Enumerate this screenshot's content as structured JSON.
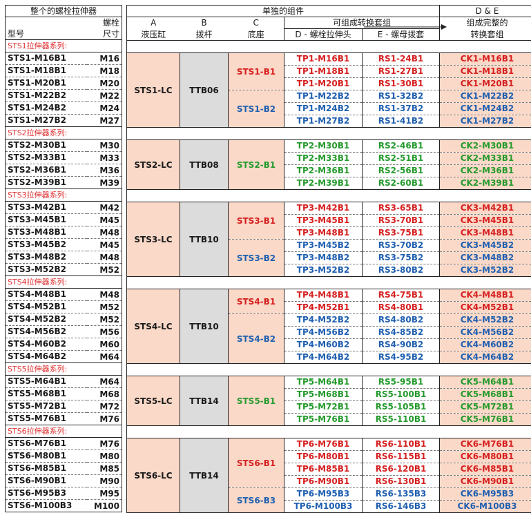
{
  "left_header": {
    "title": "整个的螺栓拉伸器",
    "bolt": "螺栓",
    "size": "尺寸",
    "model": "型号"
  },
  "right_header": {
    "separate": "单独的组件",
    "combine": "可组成转换套组",
    "de_title": "D & E",
    "de_1": "组成完整的",
    "de_2": "转换套组",
    "a_letter": "A",
    "a_name": "液压缸",
    "b_letter": "B",
    "b_name": "拨杆",
    "c_letter": "C",
    "c_name": "底座",
    "d_name": "D - 螺栓拉伸头",
    "e_name": "E - 螺母拨套"
  },
  "series": [
    {
      "label": "STS1拉伸器系列:",
      "cyl": "STS1-LC",
      "lever": "TTB06",
      "bases": [
        {
          "name": "STS1-B1",
          "color": "red",
          "rows": [
            {
              "model": "STS1-M16B1",
              "size": "M16",
              "head": "TP1-M16B1",
              "socket": "RS1-24B1",
              "kit": "CK1-M16B1"
            },
            {
              "model": "STS1-M18B1",
              "size": "M18",
              "head": "TP1-M18B1",
              "socket": "RS1-27B1",
              "kit": "CK1-M18B1"
            },
            {
              "model": "STS1-M20B1",
              "size": "M20",
              "head": "TP1-M20B1",
              "socket": "RS1-30B1",
              "kit": "CK1-M20B1"
            }
          ]
        },
        {
          "name": "STS1-B2",
          "color": "blue",
          "rows": [
            {
              "model": "STS1-M22B2",
              "size": "M22",
              "head": "TP1-M22B2",
              "socket": "RS1-32B2",
              "kit": "CK1-M22B2"
            },
            {
              "model": "STS1-M24B2",
              "size": "M24",
              "head": "TP1-M24B2",
              "socket": "RS1-37B2",
              "kit": "CK1-M24B2"
            },
            {
              "model": "STS1-M27B2",
              "size": "M27",
              "head": "TP1-M27B2",
              "socket": "RS1-41B2",
              "kit": "CK1-M27B2"
            }
          ]
        }
      ]
    },
    {
      "label": "STS2拉伸器系列:",
      "cyl": "STS2-LC",
      "lever": "TTB08",
      "bases": [
        {
          "name": "STS2-B1",
          "color": "green",
          "rows": [
            {
              "model": "STS2-M30B1",
              "size": "M30",
              "head": "TP2-M30B1",
              "socket": "RS2-46B1",
              "kit": "CK2-M30B1"
            },
            {
              "model": "STS2-M33B1",
              "size": "M33",
              "head": "TP2-M33B1",
              "socket": "RS2-51B1",
              "kit": "CK2-M33B1"
            },
            {
              "model": "STS2-M36B1",
              "size": "M36",
              "head": "TP2-M36B1",
              "socket": "RS2-56B1",
              "kit": "CK2-M36B1"
            },
            {
              "model": "STS2-M39B1",
              "size": "M39",
              "head": "TP2-M39B1",
              "socket": "RS2-60B1",
              "kit": "CK2-M39B1"
            }
          ]
        }
      ]
    },
    {
      "label": "STS3拉伸器系列:",
      "cyl": "STS3-LC",
      "lever": "TTB10",
      "bases": [
        {
          "name": "STS3-B1",
          "color": "red",
          "rows": [
            {
              "model": "STS3-M42B1",
              "size": "M42",
              "head": "TP3-M42B1",
              "socket": "RS3-65B1",
              "kit": "CK3-M42B1"
            },
            {
              "model": "STS3-M45B1",
              "size": "M45",
              "head": "TP3-M45B1",
              "socket": "RS3-70B1",
              "kit": "CK3-M45B1"
            },
            {
              "model": "STS3-M48B1",
              "size": "M48",
              "head": "TP3-M48B1",
              "socket": "RS3-75B1",
              "kit": "CK3-M48B1"
            }
          ]
        },
        {
          "name": "STS3-B2",
          "color": "blue",
          "rows": [
            {
              "model": "STS3-M45B2",
              "size": "M45",
              "head": "TP3-M45B2",
              "socket": "RS3-70B2",
              "kit": "CK3-M45B2"
            },
            {
              "model": "STS3-M48B2",
              "size": "M48",
              "head": "TP3-M48B2",
              "socket": "RS3-75B2",
              "kit": "CK3-M48B2"
            },
            {
              "model": "STS3-M52B2",
              "size": "M52",
              "head": "TP3-M52B2",
              "socket": "RS3-80B2",
              "kit": "CK3-M52B2"
            }
          ]
        }
      ]
    },
    {
      "label": "STS4拉伸器系列:",
      "cyl": "STS4-LC",
      "lever": "TTB10",
      "bases": [
        {
          "name": "STS4-B1",
          "color": "red",
          "rows": [
            {
              "model": "STS4-M48B1",
              "size": "M48",
              "head": "TP4-M48B1",
              "socket": "RS4-75B1",
              "kit": "CK4-M48B1"
            },
            {
              "model": "STS4-M52B1",
              "size": "M52",
              "head": "TP4-M52B1",
              "socket": "RS4-80B1",
              "kit": "CK4-M52B1"
            }
          ]
        },
        {
          "name": "STS4-B2",
          "color": "blue",
          "rows": [
            {
              "model": "STS4-M52B2",
              "size": "M52",
              "head": "TP4-M52B2",
              "socket": "RS4-80B2",
              "kit": "CK4-M52B2"
            },
            {
              "model": "STS4-M56B2",
              "size": "M56",
              "head": "TP4-M56B2",
              "socket": "RS4-85B2",
              "kit": "CK4-M56B2"
            },
            {
              "model": "STS4-M60B2",
              "size": "M60",
              "head": "TP4-M60B2",
              "socket": "RS4-90B2",
              "kit": "CK4-M60B2"
            },
            {
              "model": "STS4-M64B2",
              "size": "M64",
              "head": "TP4-M64B2",
              "socket": "RS4-95B2",
              "kit": "CK4-M64B2"
            }
          ]
        }
      ]
    },
    {
      "label": "STS5拉伸器系列:",
      "cyl": "STS5-LC",
      "lever": "TTB14",
      "bases": [
        {
          "name": "STS5-B1",
          "color": "green",
          "rows": [
            {
              "model": "STS5-M64B1",
              "size": "M64",
              "head": "TP5-M64B1",
              "socket": "RS5-95B1",
              "kit": "CK5-M64B1"
            },
            {
              "model": "STS5-M68B1",
              "size": "M68",
              "head": "TP5-M68B1",
              "socket": "RS5-100B1",
              "kit": "CK5-M68B1"
            },
            {
              "model": "STS5-M72B1",
              "size": "M72",
              "head": "TP5-M72B1",
              "socket": "RS5-105B1",
              "kit": "CK5-M72B1"
            },
            {
              "model": "STS5-M76B1",
              "size": "M76",
              "head": "TP5-M76B1",
              "socket": "RS5-110B1",
              "kit": "CK5-M76B1"
            }
          ]
        }
      ]
    },
    {
      "label": "STS6拉伸器系列:",
      "cyl": "STS6-LC",
      "lever": "TTB14",
      "bases": [
        {
          "name": "STS6-B1",
          "color": "red",
          "rows": [
            {
              "model": "STS6-M76B1",
              "size": "M76",
              "head": "TP6-M76B1",
              "socket": "RS6-110B1",
              "kit": "CK6-M76B1"
            },
            {
              "model": "STS6-M80B1",
              "size": "M80",
              "head": "TP6-M80B1",
              "socket": "RS6-115B1",
              "kit": "CK6-M80B1"
            },
            {
              "model": "STS6-M85B1",
              "size": "M85",
              "head": "TP6-M85B1",
              "socket": "RS6-120B1",
              "kit": "CK6-M85B1"
            },
            {
              "model": "STS6-M90B1",
              "size": "M90",
              "head": "TP6-M90B1",
              "socket": "RS6-130B1",
              "kit": "CK6-M90B1"
            }
          ]
        },
        {
          "name": "STS6-B3",
          "color": "blue",
          "rows": [
            {
              "model": "STS6-M95B3",
              "size": "M95",
              "head": "TP6-M95B3",
              "socket": "RS6-135B3",
              "kit": "CK6-M95B3"
            },
            {
              "model": "STS6-M100B3",
              "size": "M100",
              "head": "TP6-M100B3",
              "socket": "RS6-146B3",
              "kit": "CK6-M100B3"
            }
          ]
        }
      ]
    }
  ]
}
